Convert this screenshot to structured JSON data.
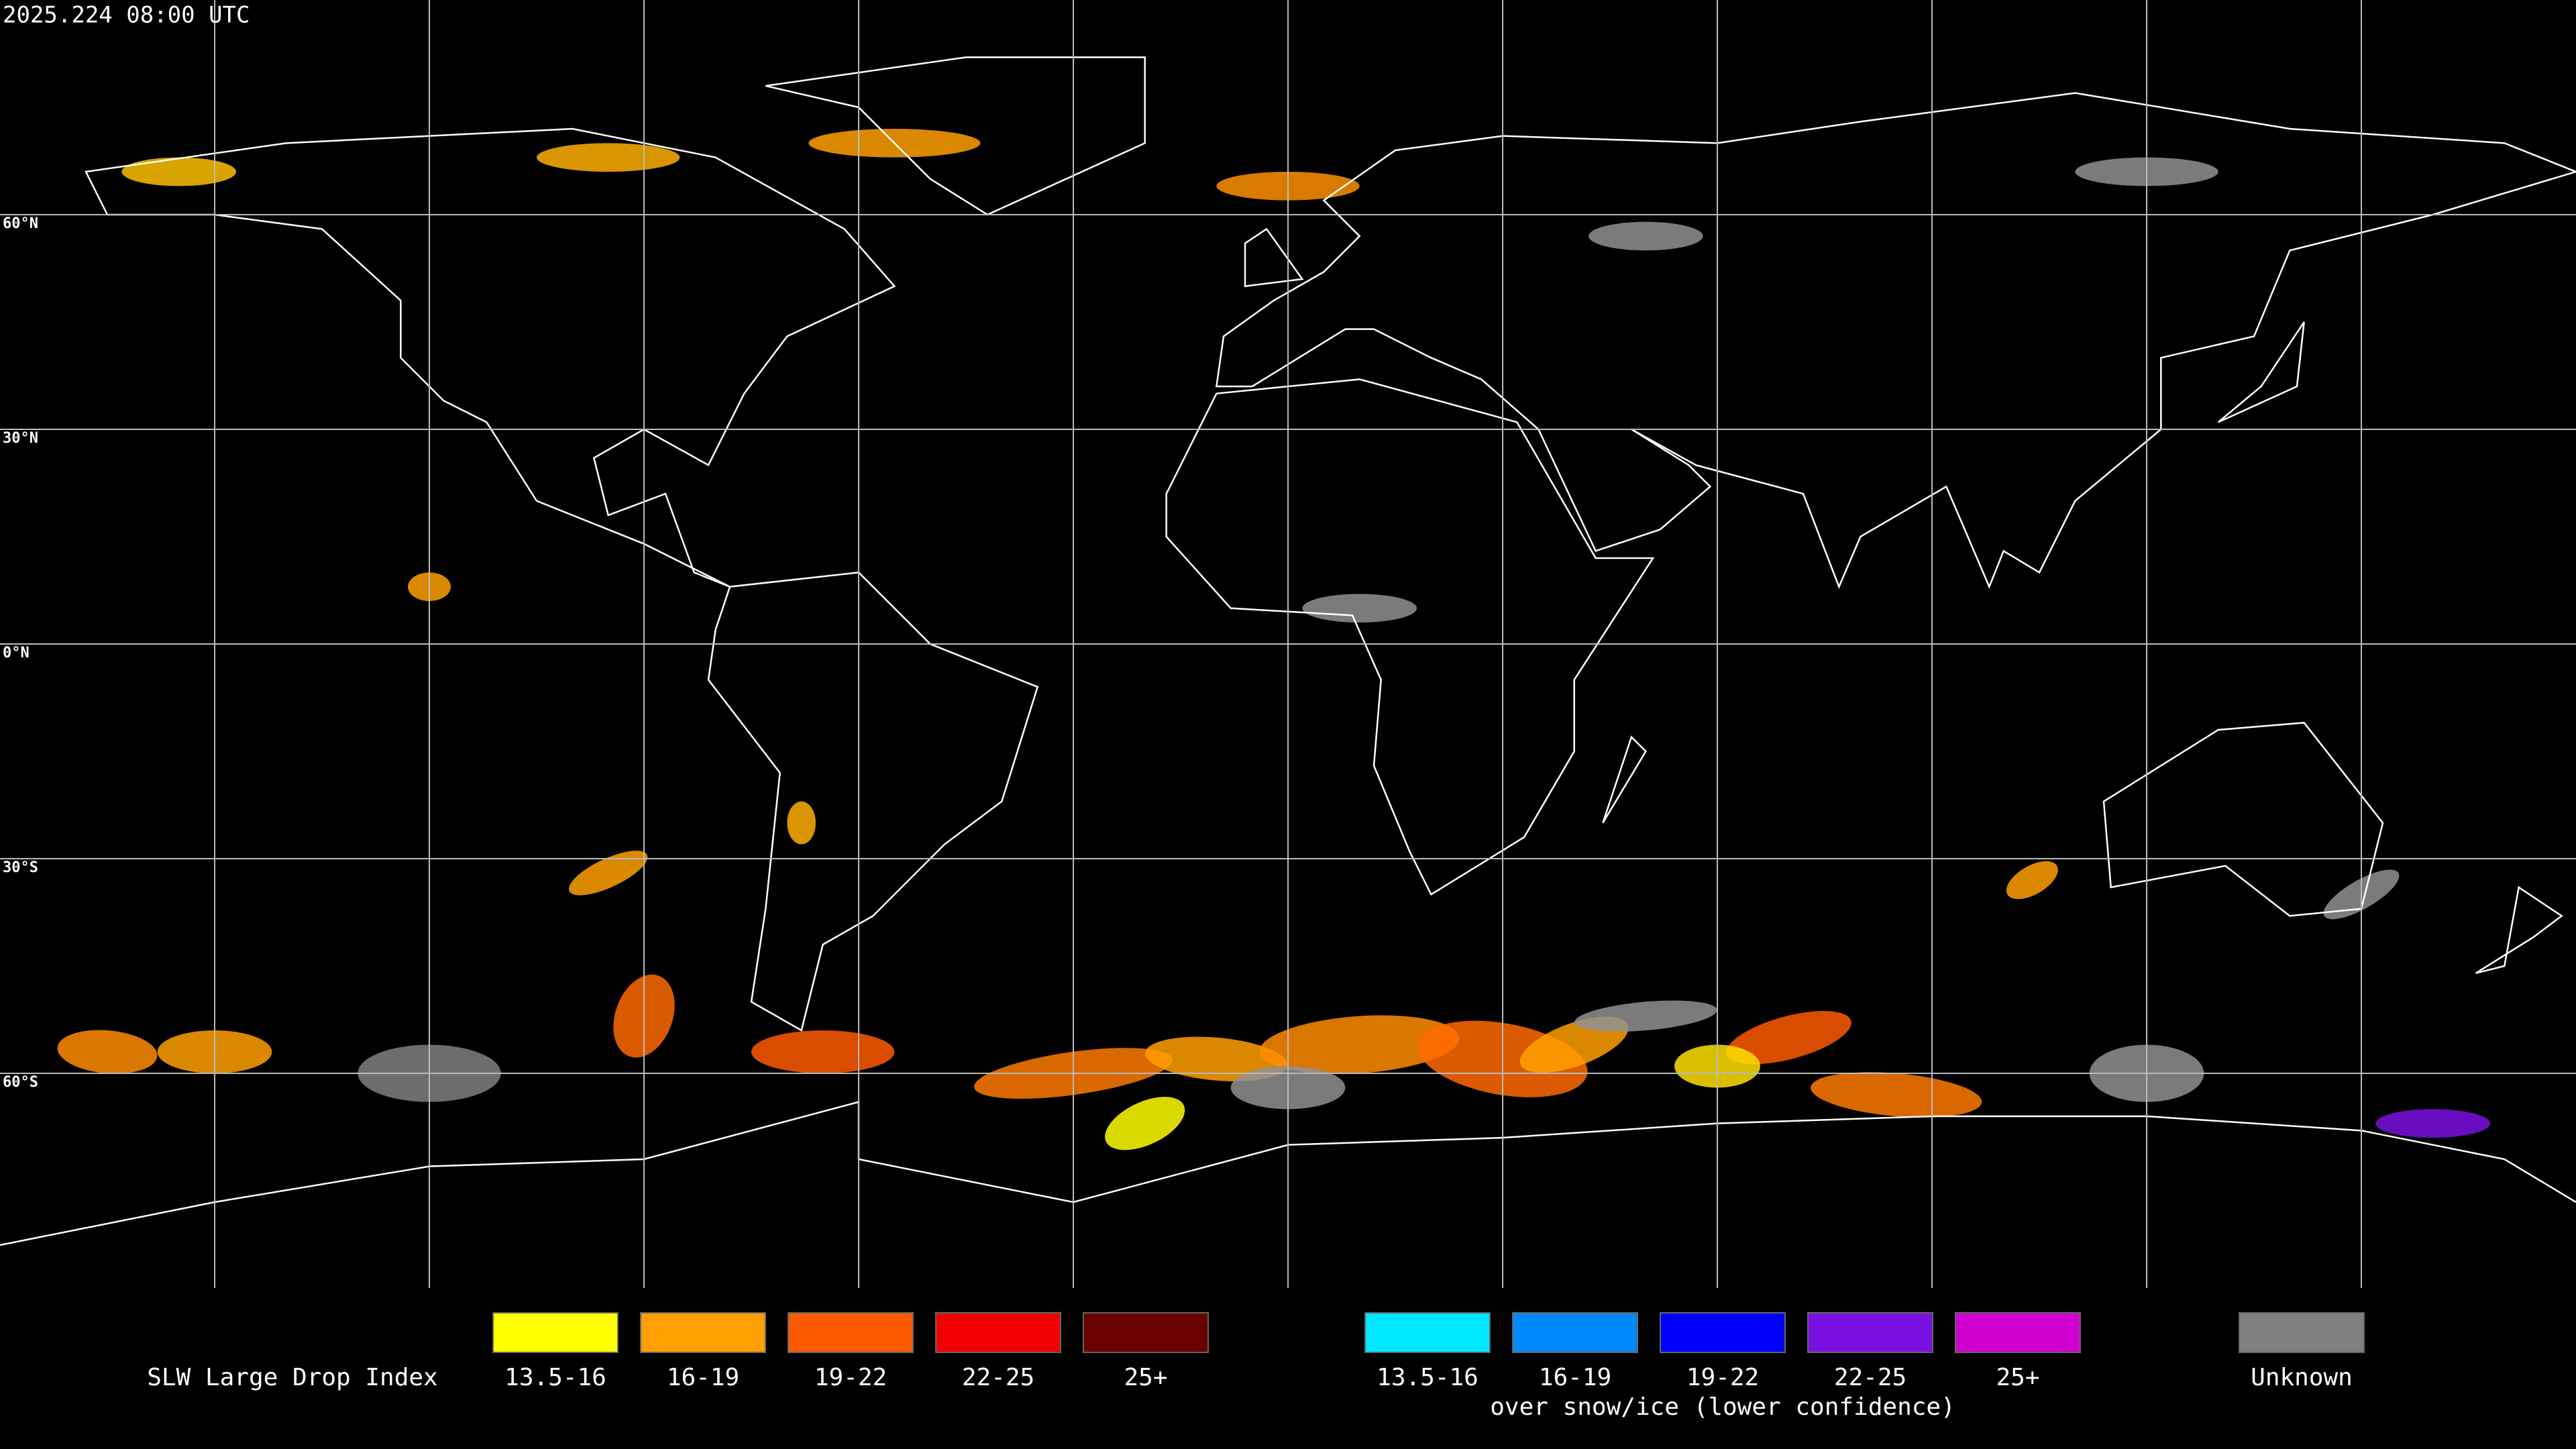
{
  "header": {
    "timestamp": "2025.224 08:00 UTC"
  },
  "map": {
    "latitude_labels": [
      "60°N",
      "30°N",
      "0°N",
      "30°S",
      "60°S"
    ]
  },
  "legend": {
    "title": "SLW Large Drop Index",
    "groups": [
      {
        "items": [
          {
            "label": "13.5-16",
            "color": "#ffff00"
          },
          {
            "label": "16-19",
            "color": "#ffa000"
          },
          {
            "label": "19-22",
            "color": "#ff5a00"
          },
          {
            "label": "22-25",
            "color": "#f00000"
          },
          {
            "label": "25+",
            "color": "#6a0000"
          }
        ]
      },
      {
        "items": [
          {
            "label": "13.5-16",
            "color": "#00e8ff"
          },
          {
            "label": "16-19",
            "color": "#0088ff"
          },
          {
            "label": "19-22",
            "color": "#0000ff"
          },
          {
            "label": "22-25",
            "color": "#7a10e0"
          },
          {
            "label": "25+",
            "color": "#d000d0"
          }
        ],
        "caption": "over snow/ice (lower confidence)"
      },
      {
        "items": [
          {
            "label": "Unknown",
            "color": "#808080"
          }
        ]
      }
    ]
  }
}
